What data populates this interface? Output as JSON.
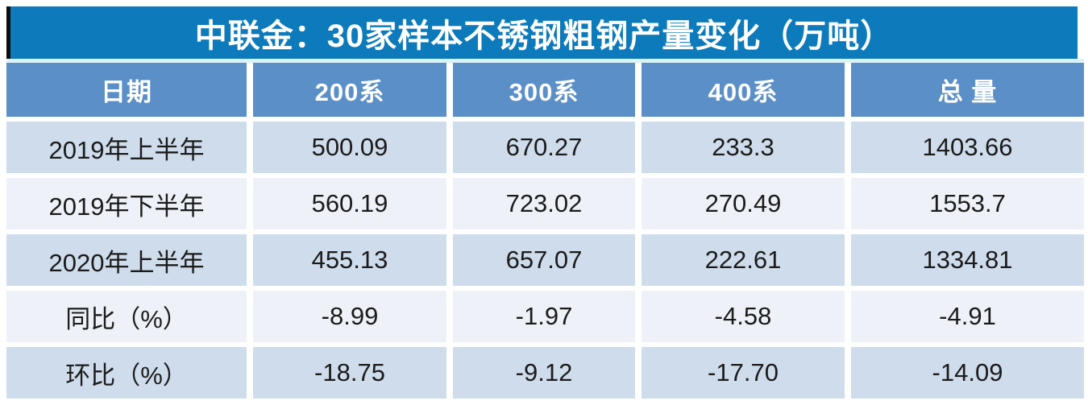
{
  "title": "中联金：30家样本不锈钢粗钢产量变化（万吨）",
  "chart_data": {
    "type": "table",
    "title": "中联金：30家样本不锈钢粗钢产量变化（万吨）",
    "unit": "万吨",
    "columns": [
      "日期",
      "200系",
      "300系",
      "400系",
      "总 量"
    ],
    "rows": [
      {
        "label": "2019年上半年",
        "values": [
          "500.09",
          "670.27",
          "233.3",
          "1403.66"
        ]
      },
      {
        "label": "2019年下半年",
        "values": [
          "560.19",
          "723.02",
          "270.49",
          "1553.7"
        ]
      },
      {
        "label": "2020年上半年",
        "values": [
          "455.13",
          "657.07",
          "222.61",
          "1334.81"
        ]
      },
      {
        "label": "同比（%）",
        "values": [
          "-8.99",
          "-1.97",
          "-4.58",
          "-4.91"
        ]
      },
      {
        "label": "环比（%）",
        "values": [
          "-18.75",
          "-9.12",
          "-17.70",
          "-14.09"
        ]
      }
    ]
  },
  "colors": {
    "title_bar": "#0c7abb",
    "title_left_border": "#0d0d0d",
    "header_row": "#5a8fc8",
    "row_light_blue": "#cfdcec",
    "row_near_white": "#eef2f8",
    "header_text": "#ffffff",
    "cell_text": "#1b1b1b"
  }
}
